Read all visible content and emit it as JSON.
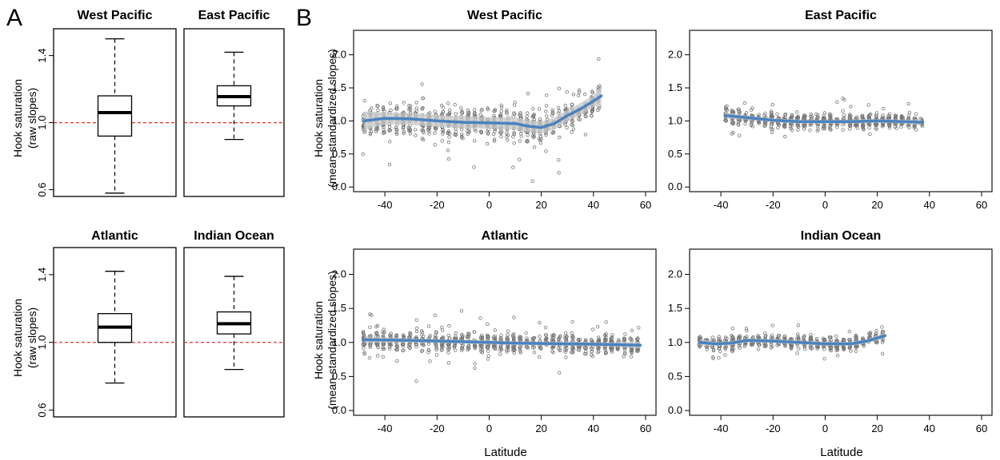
{
  "panel_labels": {
    "a": "A",
    "b": "B"
  },
  "boxplot_y_label": {
    "line1": "Hook saturation",
    "line2": "(raw slopes)"
  },
  "scatter_y_label": {
    "line1": "Hook saturation",
    "line2": "(mean-standardized slopes)"
  },
  "scatter_x_label": "Latitude",
  "colors": {
    "reference_line": "#e8302b",
    "smooth": "#4a82c0",
    "band": "#c7c7c7",
    "points": "#777777"
  },
  "chart_data": [
    {
      "type": "box",
      "title": "West Pacific",
      "ylim": [
        0.56,
        1.56
      ],
      "yticks": [
        "0.6",
        "1.0",
        "1.4"
      ],
      "reference_line": 1.0,
      "stats": {
        "min": 0.58,
        "q1": 0.92,
        "median": 1.06,
        "q3": 1.16,
        "max": 1.5
      }
    },
    {
      "type": "box",
      "title": "East Pacific",
      "ylim": [
        0.56,
        1.56
      ],
      "yticks": [
        "0.6",
        "1.0",
        "1.4"
      ],
      "reference_line": 1.0,
      "stats": {
        "min": 0.9,
        "q1": 1.1,
        "median": 1.155,
        "q3": 1.22,
        "max": 1.42
      }
    },
    {
      "type": "box",
      "title": "Atlantic",
      "ylim": [
        0.56,
        1.56
      ],
      "yticks": [
        "0.6",
        "1.0",
        "1.4"
      ],
      "reference_line": 1.0,
      "stats": {
        "min": 0.76,
        "q1": 1.0,
        "median": 1.09,
        "q3": 1.17,
        "max": 1.42
      }
    },
    {
      "type": "box",
      "title": "Indian Ocean",
      "ylim": [
        0.56,
        1.56
      ],
      "yticks": [
        "0.6",
        "1.0",
        "1.4"
      ],
      "reference_line": 1.0,
      "stats": {
        "min": 0.84,
        "q1": 1.05,
        "median": 1.11,
        "q3": 1.18,
        "max": 1.39
      }
    },
    {
      "type": "scatter",
      "title": "West Pacific",
      "xlim": [
        -52,
        64
      ],
      "ylim": [
        -0.07,
        2.37
      ],
      "xticks": [
        "-40",
        "-20",
        "0",
        "20",
        "40",
        "60"
      ],
      "yticks": [
        "0.0",
        "0.5",
        "1.0",
        "1.5",
        "2.0"
      ],
      "x_range": [
        -48,
        43
      ],
      "spread": 0.25,
      "smooth": [
        [
          -48,
          1.0
        ],
        [
          -40,
          1.04
        ],
        [
          -30,
          1.03
        ],
        [
          -20,
          1.0
        ],
        [
          -10,
          0.98
        ],
        [
          0,
          0.97
        ],
        [
          10,
          0.96
        ],
        [
          15,
          0.92
        ],
        [
          20,
          0.9
        ],
        [
          25,
          0.96
        ],
        [
          30,
          1.08
        ],
        [
          35,
          1.18
        ],
        [
          40,
          1.3
        ],
        [
          43,
          1.38
        ]
      ]
    },
    {
      "type": "scatter",
      "title": "East Pacific",
      "xlim": [
        -52,
        64
      ],
      "ylim": [
        -0.07,
        2.37
      ],
      "xticks": [
        "-40",
        "-20",
        "0",
        "20",
        "40",
        "60"
      ],
      "yticks": [
        "0.0",
        "0.5",
        "1.0",
        "1.5",
        "2.0"
      ],
      "x_range": [
        -38,
        37
      ],
      "spread": 0.12,
      "smooth": [
        [
          -38,
          1.08
        ],
        [
          -30,
          1.05
        ],
        [
          -20,
          1.01
        ],
        [
          -10,
          0.99
        ],
        [
          0,
          0.99
        ],
        [
          10,
          0.99
        ],
        [
          20,
          1.0
        ],
        [
          30,
          0.99
        ],
        [
          37,
          0.98
        ]
      ]
    },
    {
      "type": "scatter",
      "title": "Atlantic",
      "xlim": [
        -52,
        64
      ],
      "ylim": [
        -0.07,
        2.37
      ],
      "xticks": [
        "-40",
        "-20",
        "0",
        "20",
        "40",
        "60"
      ],
      "yticks": [
        "0.0",
        "0.5",
        "1.0",
        "1.5",
        "2.0"
      ],
      "x_range": [
        -48,
        58
      ],
      "spread": 0.15,
      "smooth": [
        [
          -48,
          1.04
        ],
        [
          -30,
          1.03
        ],
        [
          -10,
          1.01
        ],
        [
          0,
          1.0
        ],
        [
          10,
          0.99
        ],
        [
          30,
          0.98
        ],
        [
          45,
          0.97
        ],
        [
          58,
          0.96
        ]
      ]
    },
    {
      "type": "scatter",
      "title": "Indian Ocean",
      "xlim": [
        -52,
        64
      ],
      "ylim": [
        -0.07,
        2.37
      ],
      "xticks": [
        "-40",
        "-20",
        "0",
        "20",
        "40",
        "60"
      ],
      "yticks": [
        "0.0",
        "0.5",
        "1.0",
        "1.5",
        "2.0"
      ],
      "x_range": [
        -48,
        23
      ],
      "spread": 0.1,
      "smooth": [
        [
          -48,
          1.0
        ],
        [
          -42,
          0.98
        ],
        [
          -36,
          0.99
        ],
        [
          -30,
          1.03
        ],
        [
          -20,
          1.02
        ],
        [
          -10,
          1.0
        ],
        [
          0,
          0.98
        ],
        [
          10,
          0.98
        ],
        [
          16,
          1.02
        ],
        [
          23,
          1.1
        ]
      ]
    }
  ]
}
